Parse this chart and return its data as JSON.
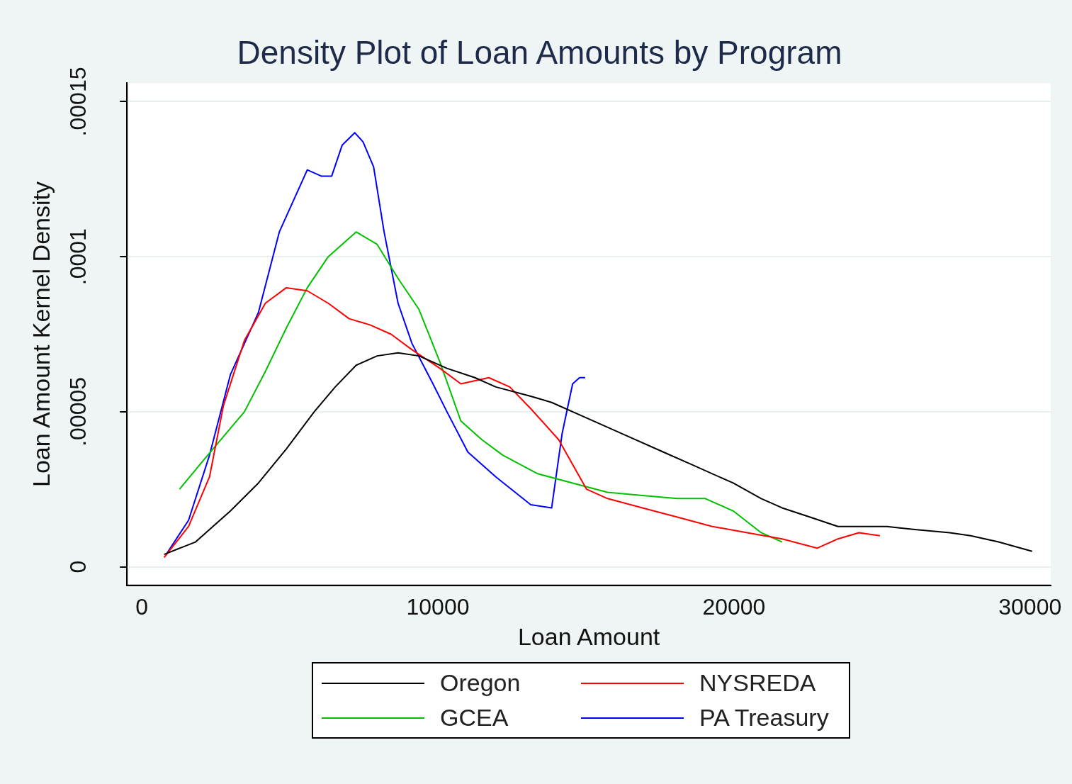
{
  "chart_data": {
    "type": "line",
    "title": "Density Plot of Loan Amounts by Program",
    "xlabel": "Loan Amount",
    "ylabel": "Loan Amount Kernel Density",
    "xlim": [
      -500,
      30700
    ],
    "xticks": [
      0,
      10000,
      20000,
      30000
    ],
    "ylim": [
      -6e-06,
      0.000156
    ],
    "yticks": [
      {
        "value": 0,
        "label": "0"
      },
      {
        "value": 5e-05,
        "label": ".00005"
      },
      {
        "value": 0.0001,
        "label": ".0001"
      },
      {
        "value": 0.00015,
        "label": ".00015"
      }
    ],
    "grid": "y",
    "legend": "bottom",
    "marker": "none",
    "line_style": "solid",
    "series": [
      {
        "name": "Oregon",
        "color": "#000000",
        "x": [
          755,
          1816,
          2995,
          3939,
          4882,
          5825,
          6533,
          7241,
          7948,
          8656,
          9363,
          10307,
          11250,
          11958,
          13137,
          13844,
          15024,
          16439,
          17618,
          18561,
          19976,
          20920,
          21627,
          22571,
          23514,
          25165,
          26108,
          27288,
          27995,
          28939,
          30071
        ],
        "values": [
          4e-06,
          8e-06,
          1.8e-05,
          2.7e-05,
          3.8e-05,
          5e-05,
          5.8e-05,
          6.5e-05,
          6.8e-05,
          6.9e-05,
          6.8e-05,
          6.4e-05,
          6.1e-05,
          5.8e-05,
          5.5e-05,
          5.3e-05,
          4.8e-05,
          4.2e-05,
          3.7e-05,
          3.3e-05,
          2.7e-05,
          2.2e-05,
          1.9e-05,
          1.6e-05,
          1.3e-05,
          1.3e-05,
          1.2e-05,
          1.1e-05,
          1e-05,
          8e-06,
          5e-06
        ]
      },
      {
        "name": "NYSREDA",
        "color": "#ff0000",
        "x": [
          755,
          1580,
          2288,
          2759,
          3467,
          4175,
          4882,
          5590,
          6297,
          7005,
          7712,
          8420,
          9127,
          10071,
          10778,
          11722,
          12429,
          13137,
          14080,
          15024,
          15731,
          16910,
          18090,
          19269,
          20448,
          21627,
          22807,
          23514,
          24222,
          24929
        ],
        "values": [
          3e-06,
          1.3e-05,
          2.9e-05,
          5.2e-05,
          7.3e-05,
          8.5e-05,
          9e-05,
          8.9e-05,
          8.5e-05,
          8e-05,
          7.8e-05,
          7.5e-05,
          7e-05,
          6.4e-05,
          5.9e-05,
          6.1e-05,
          5.8e-05,
          5.1e-05,
          4.1e-05,
          2.5e-05,
          2.2e-05,
          1.9e-05,
          1.6e-05,
          1.3e-05,
          1.1e-05,
          9e-06,
          6e-06,
          9e-06,
          1.1e-05,
          1e-05
        ]
      },
      {
        "name": "GCEA",
        "color": "#00c000",
        "x": [
          1274,
          2052,
          2759,
          3467,
          4175,
          4882,
          5590,
          6297,
          7241,
          7948,
          8656,
          9363,
          10071,
          10778,
          11486,
          12193,
          13373,
          14552,
          15731,
          16910,
          18090,
          19033,
          19976,
          20920,
          21627
        ],
        "values": [
          2.5e-05,
          3.4e-05,
          4.2e-05,
          5e-05,
          6.3e-05,
          7.7e-05,
          9e-05,
          0.0001,
          0.000108,
          0.000104,
          9.3e-05,
          8.3e-05,
          6.6e-05,
          4.7e-05,
          4.1e-05,
          3.6e-05,
          3e-05,
          2.7e-05,
          2.4e-05,
          2.3e-05,
          2.2e-05,
          2.2e-05,
          1.8e-05,
          1.1e-05,
          8e-06
        ]
      },
      {
        "name": "PA Treasury",
        "color": "#0000ff",
        "x": [
          825,
          1580,
          2288,
          2995,
          3939,
          4646,
          5590,
          6061,
          6415,
          6769,
          7193,
          7476,
          7830,
          8184,
          8656,
          9127,
          9835,
          10307,
          11014,
          11958,
          13137,
          13844,
          14198,
          14552,
          14788,
          14976
        ],
        "values": [
          4e-06,
          1.5e-05,
          3.6e-05,
          6.2e-05,
          8.2e-05,
          0.000108,
          0.000128,
          0.000126,
          0.000126,
          0.000136,
          0.00014,
          0.000137,
          0.000129,
          0.000108,
          8.5e-05,
          7.2e-05,
          5.9e-05,
          5e-05,
          3.7e-05,
          2.9e-05,
          2e-05,
          1.9e-05,
          4.3e-05,
          5.9e-05,
          6.1e-05,
          6.1e-05
        ]
      }
    ]
  }
}
